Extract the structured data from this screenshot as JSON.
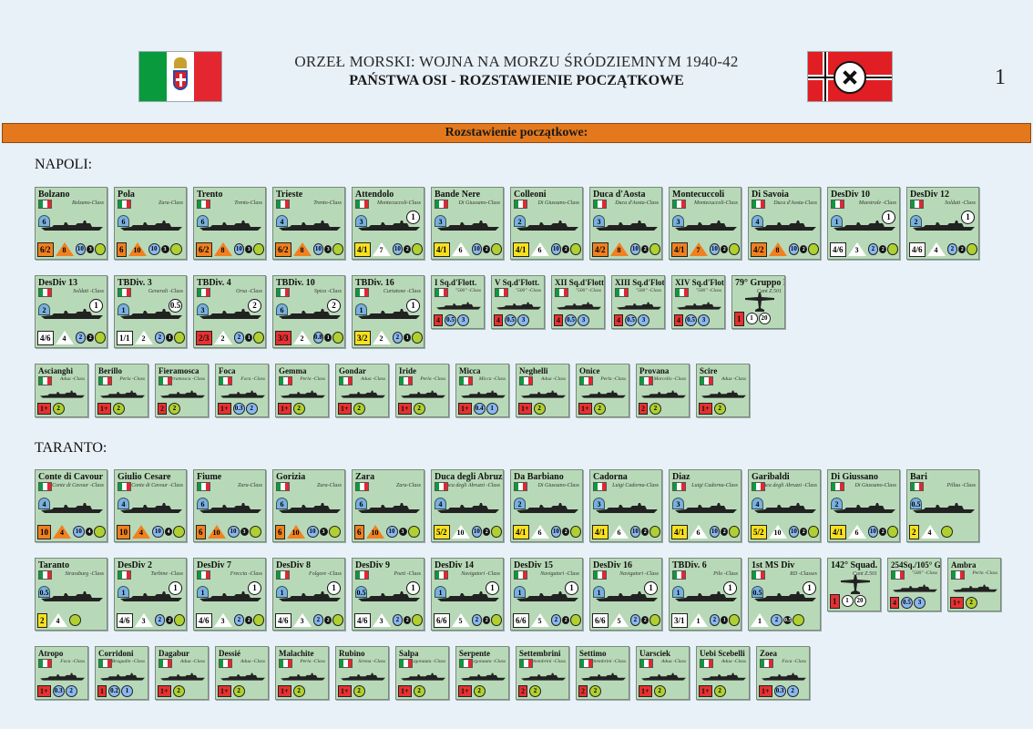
{
  "header": {
    "title": "ORZEŁ MORSKI: WOJNA NA MORZU ŚRÓDZIEMNYM 1940-42",
    "subtitle": "PAŃSTWA OSI -  ROZSTAWIENIE POCZĄTKOWE",
    "page_number": "1"
  },
  "banner": "Rozstawienie początkowe:",
  "ports": [
    {
      "name": "NAPOLI:",
      "rows": [
        [
          {
            "n": "Bolzano",
            "c": "Bolzano-Class",
            "s": "big",
            "spd": "6",
            "atk": "6/2",
            "t": "8",
            "d": "10",
            "k": "3",
            "f": "orange"
          },
          {
            "n": "Pola",
            "c": "Zara-Class",
            "s": "big",
            "spd": "6",
            "atk": "6",
            "t": "10",
            "d": "10",
            "k": "3",
            "f": "orange"
          },
          {
            "n": "Trento",
            "c": "Trento-Class",
            "s": "big",
            "spd": "6",
            "atk": "6/2",
            "t": "8",
            "d": "10",
            "k": "3",
            "f": "orange"
          },
          {
            "n": "Trieste",
            "c": "Trento-Class",
            "s": "big",
            "spd": "4",
            "atk": "6/2",
            "t": "8",
            "d": "10",
            "k": "3",
            "f": "orange"
          },
          {
            "n": "Attendolo",
            "c": "Montecuccoli-Class",
            "s": "big",
            "spd": "3",
            "atk": "4/1",
            "t": "7",
            "d": "10",
            "k": "2",
            "f": "yellow",
            "circ": "1"
          },
          {
            "n": "Bande Nere",
            "c": "Di Giussano-Class",
            "s": "big",
            "spd": "3",
            "atk": "4/1",
            "t": "6",
            "d": "10",
            "k": "2",
            "f": "yellow"
          },
          {
            "n": "Colleoni",
            "c": "Di Giussano-Class",
            "s": "big",
            "spd": "2",
            "atk": "4/1",
            "t": "6",
            "d": "10",
            "k": "2",
            "f": "yellow"
          },
          {
            "n": "Duca d'Aosta",
            "c": "Duca d'Aosta-Class",
            "s": "big",
            "spd": "3",
            "atk": "4/2",
            "t": "8",
            "d": "10",
            "k": "2",
            "f": "orange"
          },
          {
            "n": "Montecuccoli",
            "c": "Montecuccoli-Class",
            "s": "big",
            "spd": "3",
            "atk": "4/1",
            "t": "7",
            "d": "10",
            "k": "2",
            "f": "orange"
          },
          {
            "n": "Di Savoia",
            "c": "Duca d'Aosta-Class",
            "s": "big",
            "spd": "4",
            "atk": "4/2",
            "t": "8",
            "d": "10",
            "k": "2",
            "f": "orange"
          },
          {
            "n": "DesDiv 10",
            "c": "Maestrale -Class",
            "s": "big",
            "spd": "1",
            "atk": "4/6",
            "t": "3",
            "d": "2",
            "k": "2",
            "f": "white",
            "circ": "1"
          },
          {
            "n": "DesDiv 12",
            "c": "Soldati -Class",
            "s": "big",
            "spd": "2",
            "atk": "4/6",
            "t": "4",
            "d": "2",
            "k": "2",
            "f": "white",
            "circ": "1"
          }
        ],
        [
          {
            "n": "DesDiv 13",
            "c": "Soldati -Class",
            "s": "big",
            "spd": "2",
            "atk": "4/6",
            "t": "4",
            "d": "2",
            "k": "2",
            "f": "white",
            "circ": "1"
          },
          {
            "n": "TBDiv. 3",
            "c": "Generali -Class",
            "s": "big",
            "spd": "1",
            "atk": "1/1",
            "t": "2",
            "d": "2",
            "k": "1",
            "f": "white",
            "circ": "0.5"
          },
          {
            "n": "TBDiv. 4",
            "c": "Orsa -Class",
            "s": "big",
            "spd": "3",
            "atk": "2/3",
            "t": "2",
            "d": "2",
            "k": "1",
            "f": "red",
            "circ": "2"
          },
          {
            "n": "TBDiv. 10",
            "c": "Spica -Class",
            "s": "big",
            "spd": "6",
            "atk": "3/3",
            "t": "2",
            "d": "0.8",
            "k": "1",
            "f": "red",
            "circ": "2"
          },
          {
            "n": "TBDiv. 16",
            "c": "Curtatone -Class",
            "s": "big",
            "spd": "1",
            "atk": "3/2",
            "t": "2",
            "d": "2",
            "k": "1",
            "f": "yellow",
            "circ": "1"
          },
          {
            "n": "I Sq.d'Flott.",
            "c": "\"500\" -Class",
            "s": "med",
            "atk": "4",
            "d": "0.5",
            "e": "3",
            "f": "red"
          },
          {
            "n": "V Sq.d'Flott.",
            "c": "\"500\" -Class",
            "s": "med",
            "atk": "4",
            "d": "0.5",
            "e": "3",
            "f": "red"
          },
          {
            "n": "XII Sq.d'Flott.",
            "c": "\"500\" -Class",
            "s": "med",
            "atk": "4",
            "d": "0.5",
            "e": "3",
            "f": "red"
          },
          {
            "n": "XIII Sq.d'Flott.",
            "c": "\"500\" -Class",
            "s": "med",
            "atk": "4",
            "d": "0.5",
            "e": "3",
            "f": "red"
          },
          {
            "n": "XIV Sq.d'Flott.",
            "c": "\"500\" -Class",
            "s": "med",
            "atk": "4",
            "d": "0.5",
            "e": "3",
            "f": "red"
          },
          {
            "n": "79° Gruppo RM",
            "c": "Cant Z.501",
            "s": "air",
            "atk": "1",
            "d": "20",
            "e": "3"
          }
        ],
        [
          {
            "n": "Ascianghi",
            "c": "Adua -Class",
            "s": "med",
            "atk": "1+",
            "d": "2"
          },
          {
            "n": "Berillo",
            "c": "Perla -Class",
            "s": "med",
            "atk": "1+",
            "d": "2"
          },
          {
            "n": "Fieramosca",
            "c": "Fieramosca -Class",
            "s": "med",
            "atk": "2",
            "d": "2"
          },
          {
            "n": "Foca",
            "c": "Foca -Class",
            "s": "med",
            "atk": "1+",
            "d": "0.3",
            "e": "2"
          },
          {
            "n": "Gemma",
            "c": "Perla -Class",
            "s": "med",
            "atk": "1+",
            "d": "2"
          },
          {
            "n": "Gondar",
            "c": "Adua -Class",
            "s": "med",
            "atk": "1+",
            "d": "2"
          },
          {
            "n": "Iride",
            "c": "Perla -Class",
            "s": "med",
            "atk": "1+",
            "d": "2"
          },
          {
            "n": "Micca",
            "c": "Micca -Class",
            "s": "med",
            "atk": "1+",
            "d": "0.4",
            "e": "1"
          },
          {
            "n": "Neghelli",
            "c": "Adua -Class",
            "s": "med",
            "atk": "1+",
            "d": "2"
          },
          {
            "n": "Onice",
            "c": "Perla -Class",
            "s": "med",
            "atk": "1+",
            "d": "2"
          },
          {
            "n": "Provana",
            "c": "Marcello -Class",
            "s": "med",
            "atk": "2",
            "d": "2"
          },
          {
            "n": "Scire",
            "c": "Adua -Class",
            "s": "med",
            "atk": "1+",
            "d": "2"
          }
        ]
      ]
    },
    {
      "name": "TARANTO:",
      "rows": [
        [
          {
            "n": "Conte di Cavour",
            "c": "Conte di Cavour -Class",
            "s": "big",
            "spd": "4",
            "atk": "10",
            "t": "4",
            "d": "10",
            "k": "4",
            "f": "orange"
          },
          {
            "n": "Giulio Cesare",
            "c": "Conte di Cavour -Class",
            "s": "big",
            "spd": "4",
            "atk": "10",
            "t": "4",
            "d": "10",
            "k": "4",
            "f": "orange"
          },
          {
            "n": "Fiume",
            "c": "Zara-Class",
            "s": "big",
            "spd": "6",
            "atk": "6",
            "t": "10",
            "d": "10",
            "k": "3",
            "f": "orange"
          },
          {
            "n": "Gorizia",
            "c": "Zara-Class",
            "s": "big",
            "spd": "6",
            "atk": "6",
            "t": "10",
            "d": "10",
            "k": "3",
            "f": "orange"
          },
          {
            "n": "Zara",
            "c": "Zara-Class",
            "s": "big",
            "spd": "6",
            "atk": "6",
            "t": "10",
            "d": "10",
            "k": "3",
            "f": "orange"
          },
          {
            "n": "Duca degli Abruzzi",
            "c": "Duca degli Abruzzi -Class",
            "s": "big",
            "spd": "4",
            "atk": "5/2",
            "t": "10",
            "d": "10",
            "k": "2",
            "f": "yellow"
          },
          {
            "n": "Da Barbiano",
            "c": "Di Giussano-Class",
            "s": "big",
            "spd": "2",
            "atk": "4/1",
            "t": "6",
            "d": "10",
            "k": "2",
            "f": "yellow"
          },
          {
            "n": "Cadorna",
            "c": "Luigi Cadorna-Class",
            "s": "big",
            "spd": "3",
            "atk": "4/1",
            "t": "6",
            "d": "10",
            "k": "2",
            "f": "yellow"
          },
          {
            "n": "Diaz",
            "c": "Luigi Cadorna-Class",
            "s": "big",
            "spd": "3",
            "atk": "4/1",
            "t": "6",
            "d": "10",
            "k": "2",
            "f": "yellow"
          },
          {
            "n": "Garibaldi",
            "c": "Duca degli Abruzzi -Class",
            "s": "big",
            "spd": "4",
            "atk": "5/2",
            "t": "10",
            "d": "10",
            "k": "2",
            "f": "yellow"
          },
          {
            "n": "Di Giussano",
            "c": "Di Giussano-Class",
            "s": "big",
            "spd": "2",
            "atk": "4/1",
            "t": "6",
            "d": "10",
            "k": "2",
            "f": "yellow"
          },
          {
            "n": "Bari",
            "c": "Pillau -Class",
            "s": "big",
            "spd": "0.5",
            "atk": "2",
            "t": "4",
            "f": "yellow"
          }
        ],
        [
          {
            "n": "Taranto",
            "c": "Strassburg -Class",
            "s": "big",
            "spd": "0.5",
            "atk": "2",
            "t": "4",
            "f": "yellow"
          },
          {
            "n": "DesDiv 2",
            "c": "Turbine -Class",
            "s": "big",
            "spd": "1",
            "atk": "4/6",
            "t": "3",
            "d": "2",
            "k": "2",
            "f": "white",
            "circ": "1"
          },
          {
            "n": "DesDiv 7",
            "c": "Freccia -Class",
            "s": "big",
            "spd": "1",
            "atk": "4/6",
            "t": "3",
            "d": "2",
            "k": "2",
            "f": "white",
            "circ": "1"
          },
          {
            "n": "DesDiv 8",
            "c": "Folgore -Class",
            "s": "big",
            "spd": "1",
            "atk": "4/6",
            "t": "3",
            "d": "2",
            "k": "2",
            "f": "white",
            "circ": "1"
          },
          {
            "n": "DesDiv 9",
            "c": "Poeti -Class",
            "s": "big",
            "spd": "0.5",
            "atk": "4/6",
            "t": "3",
            "d": "2",
            "k": "2",
            "f": "white",
            "circ": "1"
          },
          {
            "n": "DesDiv 14",
            "c": "Navigatori -Class",
            "s": "big",
            "spd": "1",
            "atk": "6/6",
            "t": "5",
            "d": "2",
            "k": "2",
            "f": "white",
            "circ": "1"
          },
          {
            "n": "DesDiv 15",
            "c": "Navigatori -Class",
            "s": "big",
            "spd": "1",
            "atk": "6/6",
            "t": "5",
            "d": "2",
            "k": "2",
            "f": "white",
            "circ": "1"
          },
          {
            "n": "DesDiv 16",
            "c": "Navigatori -Class",
            "s": "big",
            "spd": "1",
            "atk": "6/6",
            "t": "5",
            "d": "2",
            "k": "2",
            "f": "white",
            "circ": "1"
          },
          {
            "n": "TBDiv. 6",
            "c": "Pilo -Class",
            "s": "big",
            "spd": "1",
            "atk": "3/1",
            "t": "1",
            "d": "2",
            "k": "1",
            "f": "white",
            "circ": "1"
          },
          {
            "n": "1st MS Div",
            "c": "RD -Classes",
            "s": "big",
            "spd": "0.5",
            "atk": "",
            "t": "1",
            "d": "2",
            "k": "0.5",
            "f": "white",
            "circ": "1"
          },
          {
            "n": "142° Squad. RM",
            "c": "Cant Z.501",
            "s": "air",
            "atk": "1",
            "d": "20",
            "e": "3"
          },
          {
            "n": "254Sq./105° Gr.",
            "c": "\"500\" -Class",
            "s": "med",
            "atk": "4",
            "d": "0.5",
            "e": "3",
            "f": "red"
          },
          {
            "n": "Ambra",
            "c": "Perla -Class",
            "s": "med",
            "atk": "1+",
            "d": "2"
          }
        ],
        [
          {
            "n": "Atropo",
            "c": "Foca -Class",
            "s": "med",
            "atk": "1+",
            "d": "0.3",
            "e": "2"
          },
          {
            "n": "Corridoni",
            "c": "Bragadin -Class",
            "s": "med",
            "atk": "1",
            "d": "0.2",
            "e": "1"
          },
          {
            "n": "Dagabur",
            "c": "Adua -Class",
            "s": "med",
            "atk": "1+",
            "d": "2"
          },
          {
            "n": "Dessié",
            "c": "Adua -Class",
            "s": "med",
            "atk": "1+",
            "d": "2"
          },
          {
            "n": "Malachite",
            "c": "Perla -Class",
            "s": "med",
            "atk": "1+",
            "d": "2"
          },
          {
            "n": "Rubino",
            "c": "Sirena -Class",
            "s": "med",
            "atk": "1+",
            "d": "2"
          },
          {
            "n": "Salpa",
            "c": "Argonauta -Class",
            "s": "med",
            "atk": "1+",
            "d": "2"
          },
          {
            "n": "Serpente",
            "c": "Argonauta -Class",
            "s": "med",
            "atk": "1+",
            "d": "2"
          },
          {
            "n": "Settembrini",
            "c": "Settembrini -Class",
            "s": "med",
            "atk": "2",
            "d": "2"
          },
          {
            "n": "Settimo",
            "c": "Settembrini -Class",
            "s": "med",
            "atk": "2",
            "d": "2"
          },
          {
            "n": "Uarsciek",
            "c": "Adua -Class",
            "s": "med",
            "atk": "1+",
            "d": "2"
          },
          {
            "n": "Uebi Scebelli",
            "c": "Adua -Class",
            "s": "med",
            "atk": "1+",
            "d": "2"
          },
          {
            "n": "Zoea",
            "c": "Foca -Class",
            "s": "med",
            "atk": "1+",
            "d": "0.3",
            "e": "2"
          }
        ]
      ]
    }
  ]
}
